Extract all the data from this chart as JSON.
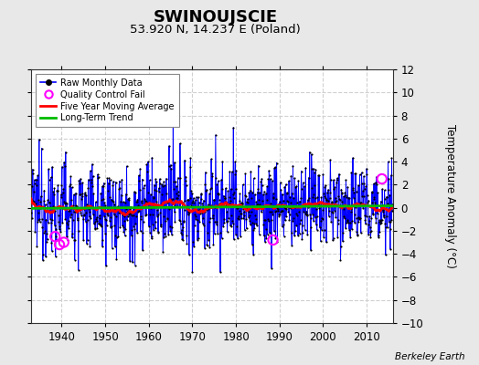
{
  "title": "SWINOUJSCIE",
  "subtitle": "53.920 N, 14.237 E (Poland)",
  "ylabel": "Temperature Anomaly (°C)",
  "credit": "Berkeley Earth",
  "xlim": [
    1933,
    2016
  ],
  "ylim": [
    -10,
    12
  ],
  "yticks": [
    -10,
    -8,
    -6,
    -4,
    -2,
    0,
    2,
    4,
    6,
    8,
    10,
    12
  ],
  "xticks": [
    1940,
    1950,
    1960,
    1970,
    1980,
    1990,
    2000,
    2010
  ],
  "bg_color": "#e8e8e8",
  "plot_bg_color": "#ffffff",
  "grid_color": "#d0d0d0",
  "raw_line_color": "#0000ff",
  "raw_dot_color": "#000000",
  "ma_color": "#ff0000",
  "trend_color": "#00bb00",
  "qc_color": "#ff00ff",
  "start_year": 1933,
  "end_year": 2016,
  "seed": 12345,
  "n_months": 996
}
